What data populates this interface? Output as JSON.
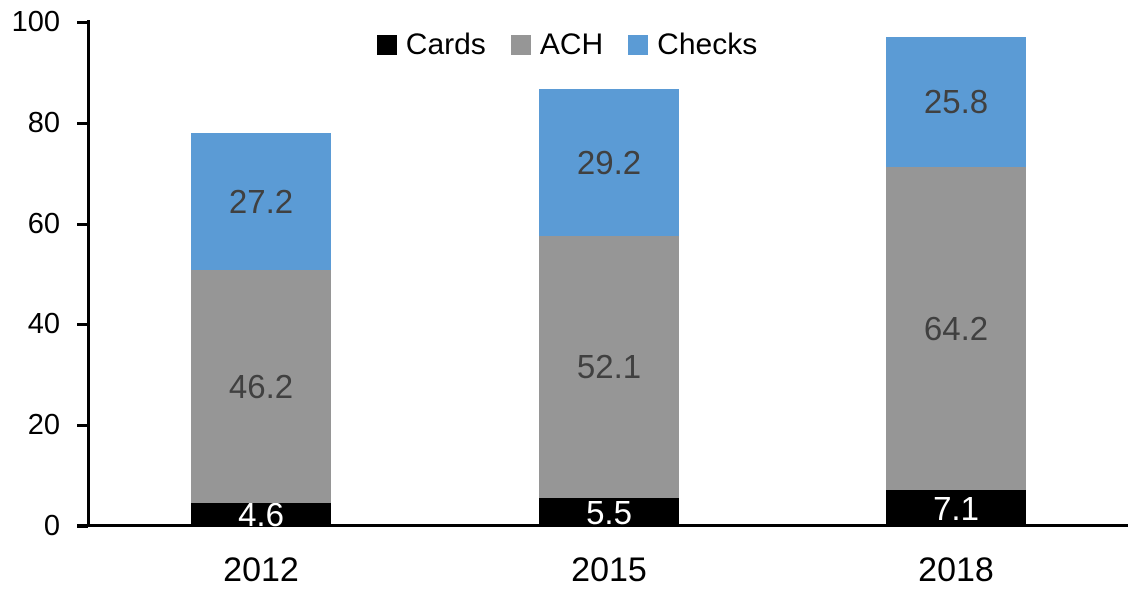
{
  "chart_data": {
    "type": "bar",
    "stacked": true,
    "title": "",
    "categories": [
      "2012",
      "2015",
      "2018"
    ],
    "series": [
      {
        "name": "Cards",
        "color": "#000000",
        "label_color": "#ffffff",
        "values": [
          4.6,
          5.5,
          7.1
        ]
      },
      {
        "name": "ACH",
        "color": "#969696",
        "label_color": "#404040",
        "values": [
          46.2,
          52.1,
          64.2
        ]
      },
      {
        "name": "Checks",
        "color": "#5b9bd5",
        "label_color": "#404040",
        "values": [
          27.2,
          29.2,
          25.8
        ]
      }
    ],
    "totals": [
      78.0,
      86.8,
      97.1
    ],
    "y_axis": {
      "min": 0,
      "max": 100,
      "ticks": [
        0,
        20,
        40,
        60,
        80,
        100
      ]
    },
    "x_axis": {
      "label": ""
    },
    "legend": {
      "position": "top",
      "entries": [
        "Cards",
        "ACH",
        "Checks"
      ]
    },
    "grid": false,
    "data_labels": true,
    "axis_color": "#000000",
    "background_color": "#ffffff"
  }
}
